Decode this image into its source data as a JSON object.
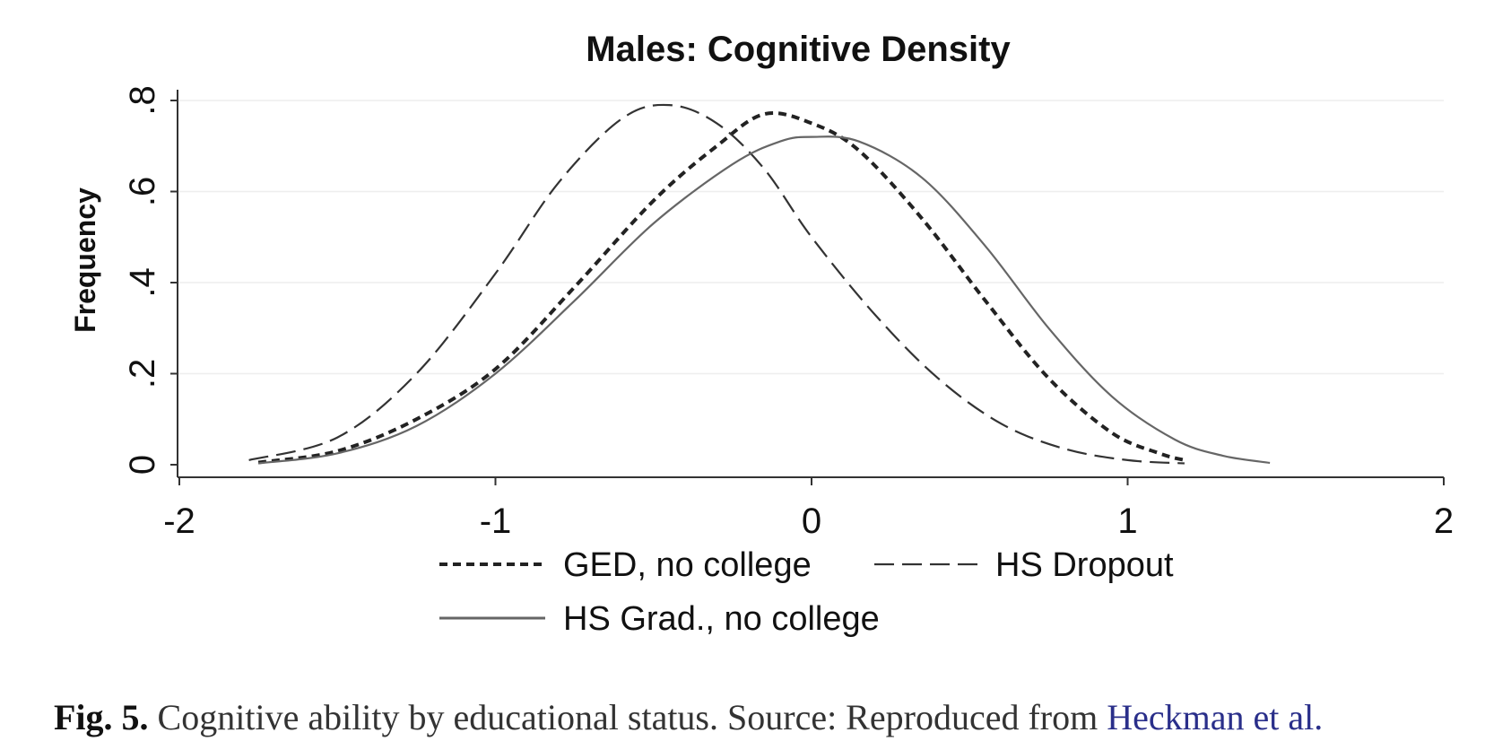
{
  "chart_data": {
    "type": "line",
    "title": "Males: Cognitive Density",
    "xlabel": "",
    "ylabel": "Frequency",
    "xlim": [
      -2,
      2
    ],
    "ylim": [
      0,
      0.8
    ],
    "xticks": [
      -2,
      -1,
      0,
      1,
      2
    ],
    "xtick_labels": [
      "-2",
      "-1",
      "0",
      "1",
      "2"
    ],
    "yticks": [
      0,
      0.2,
      0.4,
      0.6,
      0.8
    ],
    "ytick_labels": [
      "0",
      ".2",
      ".4",
      ".6",
      ".8"
    ],
    "grid": "horizontal",
    "legend_position": "bottom",
    "series": [
      {
        "name": "GED, no college",
        "style": "short-dash",
        "color": "#222222",
        "points": [
          [
            -1.75,
            0.005
          ],
          [
            -1.5,
            0.03
          ],
          [
            -1.25,
            0.1
          ],
          [
            -1.0,
            0.21
          ],
          [
            -0.75,
            0.39
          ],
          [
            -0.5,
            0.58
          ],
          [
            -0.3,
            0.7
          ],
          [
            -0.15,
            0.77
          ],
          [
            0.0,
            0.75
          ],
          [
            0.15,
            0.69
          ],
          [
            0.35,
            0.54
          ],
          [
            0.55,
            0.36
          ],
          [
            0.75,
            0.19
          ],
          [
            0.95,
            0.07
          ],
          [
            1.1,
            0.025
          ],
          [
            1.18,
            0.01
          ]
        ]
      },
      {
        "name": "HS Dropout",
        "style": "long-dash",
        "color": "#333333",
        "points": [
          [
            -1.78,
            0.01
          ],
          [
            -1.5,
            0.06
          ],
          [
            -1.25,
            0.2
          ],
          [
            -1.0,
            0.42
          ],
          [
            -0.8,
            0.62
          ],
          [
            -0.6,
            0.76
          ],
          [
            -0.45,
            0.79
          ],
          [
            -0.3,
            0.75
          ],
          [
            -0.15,
            0.65
          ],
          [
            0.0,
            0.5
          ],
          [
            0.2,
            0.33
          ],
          [
            0.4,
            0.19
          ],
          [
            0.6,
            0.09
          ],
          [
            0.8,
            0.035
          ],
          [
            1.0,
            0.01
          ],
          [
            1.18,
            0.003
          ]
        ]
      },
      {
        "name": "HS Grad., no college",
        "style": "solid",
        "color": "#666666",
        "points": [
          [
            -1.75,
            0.003
          ],
          [
            -1.5,
            0.025
          ],
          [
            -1.25,
            0.085
          ],
          [
            -1.0,
            0.2
          ],
          [
            -0.75,
            0.36
          ],
          [
            -0.5,
            0.53
          ],
          [
            -0.25,
            0.66
          ],
          [
            -0.1,
            0.71
          ],
          [
            0.0,
            0.72
          ],
          [
            0.15,
            0.71
          ],
          [
            0.35,
            0.63
          ],
          [
            0.55,
            0.48
          ],
          [
            0.75,
            0.3
          ],
          [
            0.95,
            0.15
          ],
          [
            1.15,
            0.055
          ],
          [
            1.3,
            0.02
          ],
          [
            1.45,
            0.004
          ]
        ]
      }
    ]
  },
  "caption": {
    "fig_label": "Fig. 5.",
    "text": " Cognitive ability by educational status. Source: Reproduced from ",
    "link_text": "Heckman et al."
  }
}
